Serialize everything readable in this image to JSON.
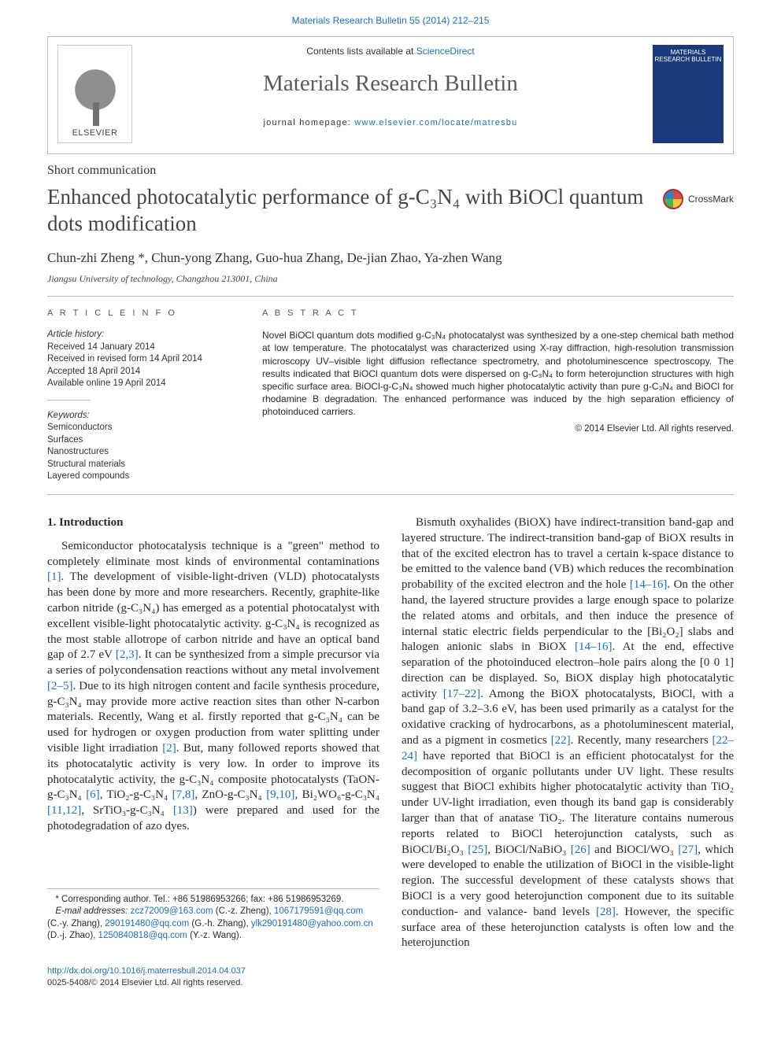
{
  "header_strip": "Materials Research Bulletin 55 (2014) 212–215",
  "banner": {
    "elsevier": "ELSEVIER",
    "contents_prefix": "Contents lists available at ",
    "contents_link": "ScienceDirect",
    "journal": "Materials Research Bulletin",
    "homepage_prefix": "journal homepage: ",
    "homepage_link": "www.elsevier.com/locate/matresbu",
    "cover_top": "MATERIALS RESEARCH BULLETIN"
  },
  "section_type": "Short communication",
  "title": "Enhanced photocatalytic performance of g-C₃N₄ with BiOCl quantum dots modification",
  "crossmark": "CrossMark",
  "authors_line": "Chun-zhi Zheng *, Chun-yong Zhang, Guo-hua Zhang, De-jian Zhao, Ya-zhen Wang",
  "affiliation": "Jiangsu University of technology, Changzhou 213001, China",
  "article_info": {
    "heading": "A R T I C L E   I N F O",
    "history_head": "Article history:",
    "history": [
      "Received 14 January 2014",
      "Received in revised form 14 April 2014",
      "Accepted 18 April 2014",
      "Available online 19 April 2014"
    ],
    "keywords_head": "Keywords:",
    "keywords": [
      "Semiconductors",
      "Surfaces",
      "Nanostructures",
      "Structural materials",
      "Layered compounds"
    ]
  },
  "abstract": {
    "heading": "A B S T R A C T",
    "body": "Novel BiOCl quantum dots modified g-C₃N₄ photocatalyst was synthesized by a one-step chemical bath method at low temperature. The photocatalyst was characterized using X-ray diffraction, high-resolution transmission microscopy UV–visible light diffusion reflectance spectrometry, and photoluminescence spectroscopy. The results indicated that BiOCl quantum dots were dispersed on g-C₃N₄ to form heterojunction structures with high specific surface area. BiOCl-g-C₃N₄ showed much higher photocatalytic activity than pure g-C₃N₄ and BiOCl for rhodamine B degradation. The enhanced performance was induced by the high separation efficiency of photoinduced carriers.",
    "copyright": "© 2014 Elsevier Ltd. All rights reserved."
  },
  "intro_heading": "1. Introduction",
  "col1_para": "Semiconductor photocatalysis technique is a \"green\" method to completely eliminate most kinds of environmental contaminations [1]. The development of visible-light-driven (VLD) photocatalysts has been done by more and more researchers. Recently, graphite-like carbon nitride (g-C₃N₄) has emerged as a potential photocatalyst with excellent visible-light photocatalytic activity. g-C₃N₄ is recognized as the most stable allotrope of carbon nitride and have an optical band gap of 2.7 eV [2,3]. It can be synthesized from a simple precursor via a series of polycondensation reactions without any metal involvement [2–5]. Due to its high nitrogen content and facile synthesis procedure, g-C₃N₄ may provide more active reaction sites than other N-carbon materials. Recently, Wang et al. firstly reported that g-C₃N₄ can be used for hydrogen or oxygen production from water splitting under visible light irradiation [2]. But, many followed reports showed that its photocatalytic activity is very low. In order to improve its photocatalytic activity, the g-C₃N₄ composite photocatalysts (TaON-g-C₃N₄ [6], TiO₂-g-C₃N₄ [7,8], ZnO-g-C₃N₄ [9,10], Bi₂WO₆-g-C₃N₄ [11,12], SrTiO₃-g-C₃N₄ [13]) were prepared and used for the photodegradation of azo dyes.",
  "col2_para": "Bismuth oxyhalides (BiOX) have indirect-transition band-gap and layered structure. The indirect-transition band-gap of BiOX results in that of the excited electron has to travel a certain k-space distance to be emitted to the valence band (VB) which reduces the recombination probability of the excited electron and the hole [14–16]. On the other hand, the layered structure provides a large enough space to polarize the related atoms and orbitals, and then induce the presence of internal static electric fields perpendicular to the [Bi₂O₂] slabs and halogen anionic slabs in BiOX [14–16]. At the end, effective separation of the photoinduced electron–hole pairs along the [0 0 1] direction can be displayed. So, BiOX display high photocatalytic activity [17–22]. Among the BiOX photocatalysts, BiOCl, with a band gap of 3.2–3.6 eV, has been used primarily as a catalyst for the oxidative cracking of hydrocarbons, as a photoluminescent material, and as a pigment in cosmetics [22]. Recently, many researchers [22–24] have reported that BiOCl is an efficient photocatalyst for the decomposition of organic pollutants under UV light. These results suggest that BiOCl exhibits higher photocatalytic activity than TiO₂ under UV-light irradiation, even though its band gap is considerably larger than that of anatase TiO₂. The literature contains numerous reports related to BiOCl heterojunction catalysts, such as BiOCl/Bi₂O₃ [25], BiOCl/NaBiO₃ [26] and BiOCl/WO₃ [27], which were developed to enable the utilization of BiOCl in the visible-light region. The successful development of these catalysts shows that BiOCl is a very good heterojunction component due to its suitable conduction- and valance- band levels [28]. However, the specific surface area of these heterojunction catalysts is often low and the heterojunction",
  "references_inline": {
    "col1": [
      "[1]",
      "[2,3]",
      "[2–5]",
      "[2]",
      "[6]",
      "[7,8]",
      "[9,10]",
      "[11,12]",
      "[13]"
    ],
    "col2": [
      "[14–16]",
      "[14–16]",
      "[17–22]",
      "[22]",
      "[22–24]",
      "[25]",
      "[26]",
      "[27]",
      "[28]"
    ]
  },
  "footnote": {
    "corr": "* Corresponding author. Tel.: +86 51986953266; fax: +86 51986953269.",
    "emails_label": "E-mail addresses: ",
    "emails": [
      {
        "addr": "zcz72009@163.com",
        "who": "(C.-z. Zheng)"
      },
      {
        "addr": "1067179591@qq.com",
        "who": ""
      },
      {
        "addr": "290191480@qq.com",
        "who": "(C.-y. Zhang)"
      },
      {
        "addr": "(G.-h. Zhang)",
        "who": ""
      },
      {
        "addr": "ylk290191480@yahoo.com.cn",
        "who": ""
      },
      {
        "addr": "(D.-j. Zhao)",
        "who": ""
      },
      {
        "addr": "1250840818@qq.com",
        "who": "(Y.-z. Wang)."
      }
    ],
    "emails_plain": "zcz72009@163.com (C.-z. Zheng), 1067179591@qq.com (C.-y. Zhang), 290191480@qq.com (G.-h. Zhang), ylk290191480@yahoo.com.cn (D.-j. Zhao), 1250840818@qq.com (Y.-z. Wang)."
  },
  "doi": {
    "link": "http://dx.doi.org/10.1016/j.materresbull.2014.04.037",
    "line2": "0025-5408/© 2014 Elsevier Ltd. All rights reserved."
  },
  "colors": {
    "link": "#1f6db3",
    "text": "#2a2a2a",
    "rule": "#bcbcbc",
    "journal_cover": "#1a3a7a"
  }
}
